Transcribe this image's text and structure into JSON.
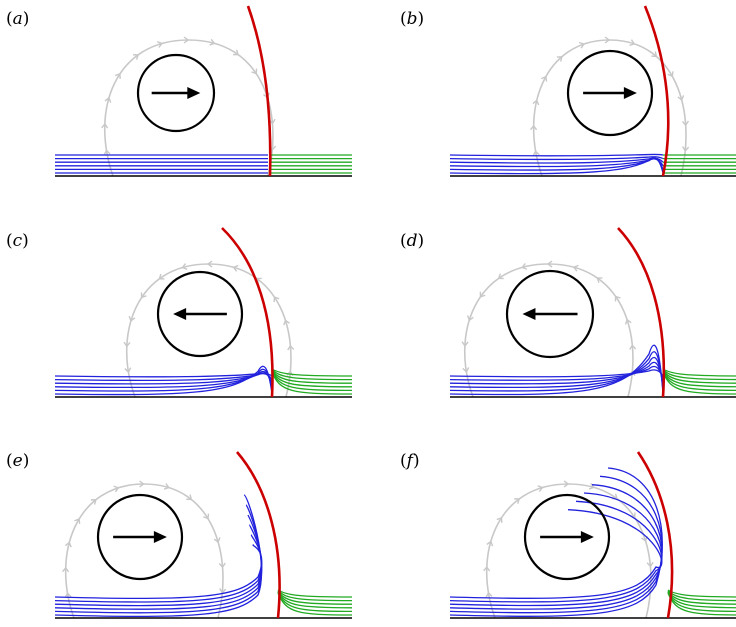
{
  "panels": [
    {
      "id": "a",
      "label": "a",
      "arrow": "right"
    },
    {
      "id": "b",
      "label": "b",
      "arrow": "right"
    },
    {
      "id": "c",
      "label": "c",
      "arrow": "left"
    },
    {
      "id": "d",
      "label": "d",
      "arrow": "left"
    },
    {
      "id": "e",
      "label": "e",
      "arrow": "right"
    },
    {
      "id": "f",
      "label": "f",
      "arrow": "right"
    }
  ],
  "colors": {
    "interface": "#cc0000",
    "left_fluid": "#2222dd",
    "right_fluid": "#22aa22",
    "orbit": "#c8c8c8",
    "wall": "#000000",
    "cylinder": "#000000"
  }
}
